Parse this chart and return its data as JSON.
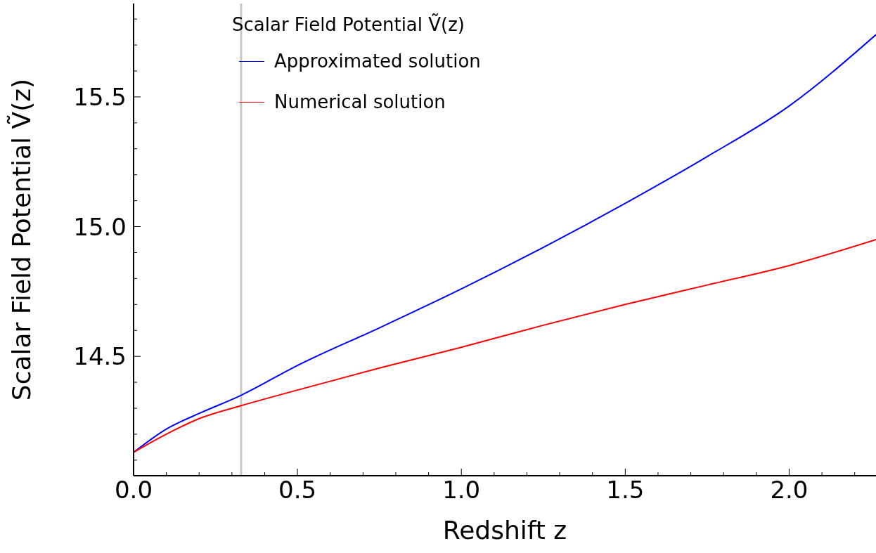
{
  "chart_data": {
    "type": "line",
    "xlabel": "Redshift z",
    "ylabel": "Scalar Field Potential Ṽ(z)",
    "legend_title": "Scalar Field Potential Ṽ(z)",
    "legend": "top",
    "grid": false,
    "marker": "none",
    "line_style": "solid",
    "xlim": [
      0,
      2.265
    ],
    "ylim": [
      14.04,
      15.86
    ],
    "xticks": [
      {
        "value": 0,
        "label": "0.0"
      },
      {
        "value": 0.1,
        "label": null
      },
      {
        "value": 0.2,
        "label": null
      },
      {
        "value": 0.3,
        "label": null
      },
      {
        "value": 0.4,
        "label": null
      },
      {
        "value": 0.5,
        "label": "0.5"
      },
      {
        "value": 0.6,
        "label": null
      },
      {
        "value": 0.7,
        "label": null
      },
      {
        "value": 0.8,
        "label": null
      },
      {
        "value": 0.9,
        "label": null
      },
      {
        "value": 1,
        "label": "1.0"
      },
      {
        "value": 1.1,
        "label": null
      },
      {
        "value": 1.2,
        "label": null
      },
      {
        "value": 1.3,
        "label": null
      },
      {
        "value": 1.4,
        "label": null
      },
      {
        "value": 1.5,
        "label": "1.5"
      },
      {
        "value": 1.6,
        "label": null
      },
      {
        "value": 1.7,
        "label": null
      },
      {
        "value": 1.8,
        "label": null
      },
      {
        "value": 1.9,
        "label": null
      },
      {
        "value": 2,
        "label": "2.0"
      },
      {
        "value": 2.1,
        "label": null
      },
      {
        "value": 2.2,
        "label": null
      }
    ],
    "yticks": [
      {
        "value": 14.1,
        "label": null
      },
      {
        "value": 14.2,
        "label": null
      },
      {
        "value": 14.3,
        "label": null
      },
      {
        "value": 14.4,
        "label": null
      },
      {
        "value": 14.5,
        "label": "14.5"
      },
      {
        "value": 14.6,
        "label": null
      },
      {
        "value": 14.7,
        "label": null
      },
      {
        "value": 14.8,
        "label": null
      },
      {
        "value": 14.9,
        "label": null
      },
      {
        "value": 15,
        "label": "15.0"
      },
      {
        "value": 15.1,
        "label": null
      },
      {
        "value": 15.2,
        "label": null
      },
      {
        "value": 15.3,
        "label": null
      },
      {
        "value": 15.4,
        "label": null
      },
      {
        "value": 15.5,
        "label": "15.5"
      },
      {
        "value": 15.6,
        "label": null
      },
      {
        "value": 15.7,
        "label": null
      },
      {
        "value": 15.8,
        "label": null
      }
    ],
    "ref_lines": [
      {
        "axis": "x",
        "value": 0.328,
        "color": "#c8c8c8"
      }
    ],
    "series": [
      {
        "name": "Approximated solution",
        "color": "#0000ff",
        "x": [
          0,
          0.1,
          0.2,
          0.328,
          0.5,
          0.75,
          1,
          1.25,
          1.5,
          1.75,
          2,
          2.265
        ],
        "values": [
          14.13,
          14.22,
          14.28,
          14.35,
          14.465,
          14.61,
          14.76,
          14.92,
          15.09,
          15.27,
          15.465,
          15.74
        ]
      },
      {
        "name": "Numerical solution",
        "color": "#ff0000",
        "x": [
          0,
          0.1,
          0.2,
          0.328,
          0.5,
          0.75,
          1,
          1.25,
          1.5,
          1.75,
          2,
          2.265
        ],
        "values": [
          14.13,
          14.2,
          14.26,
          14.31,
          14.37,
          14.455,
          14.535,
          14.62,
          14.7,
          14.775,
          14.85,
          14.95
        ]
      }
    ]
  }
}
